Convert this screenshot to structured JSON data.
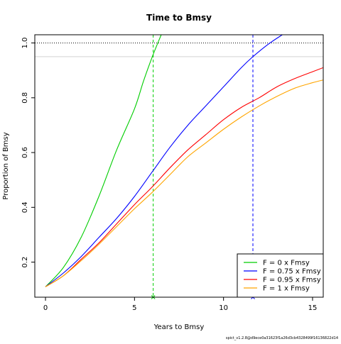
{
  "chart_data": {
    "type": "line",
    "title": "Time to Bmsy",
    "xlabel": "Years to Bmsy",
    "ylabel": "Proportion of Bmsy",
    "xlim": [
      -0.6,
      15.6
    ],
    "ylim": [
      0.072,
      1.03
    ],
    "x_ticks": [
      "0",
      "5",
      "10",
      "15"
    ],
    "y_ticks": [
      "0.2",
      "0.4",
      "0.6",
      "0.8",
      "1.0"
    ],
    "grid": false,
    "legend_position": "bottom-right",
    "reference_lines": [
      {
        "axis": "y",
        "value": 1.0,
        "style": "dotted",
        "color": "#000000"
      },
      {
        "axis": "y",
        "value": 0.95,
        "style": "solid",
        "color": "#d3d3d3"
      },
      {
        "axis": "x",
        "value": 6.05,
        "style": "dashed",
        "color": "#00cd00"
      },
      {
        "axis": "x",
        "value": 11.65,
        "style": "dashed",
        "color": "#0000ff"
      }
    ],
    "markers": [
      {
        "x": 6.05,
        "color": "#00cd00",
        "symbol": "x"
      },
      {
        "x": 11.65,
        "color": "#0000ff",
        "symbol": "x"
      }
    ],
    "series": [
      {
        "name": "F = 0 x Fmsy",
        "color": "#00cd00",
        "x": [
          0,
          1,
          2,
          3,
          4,
          5,
          5.5,
          6,
          6.5
        ],
        "y": [
          0.11,
          0.18,
          0.29,
          0.44,
          0.61,
          0.76,
          0.86,
          0.95,
          1.03
        ]
      },
      {
        "name": "F = 0.75 x Fmsy",
        "color": "#0000ff",
        "x": [
          0,
          1,
          2,
          3,
          4,
          5,
          6,
          7,
          8,
          9,
          10,
          11,
          11.65,
          12.5,
          13.3
        ],
        "y": [
          0.11,
          0.16,
          0.22,
          0.29,
          0.36,
          0.44,
          0.53,
          0.62,
          0.7,
          0.77,
          0.84,
          0.91,
          0.95,
          0.995,
          1.03
        ]
      },
      {
        "name": "F = 0.95 x Fmsy",
        "color": "#ff0000",
        "x": [
          0,
          1,
          2,
          3,
          4,
          5,
          6,
          7,
          8,
          9,
          10,
          11,
          12,
          13,
          14,
          15,
          15.6
        ],
        "y": [
          0.11,
          0.15,
          0.21,
          0.27,
          0.34,
          0.41,
          0.475,
          0.545,
          0.61,
          0.665,
          0.72,
          0.765,
          0.8,
          0.84,
          0.87,
          0.895,
          0.91
        ]
      },
      {
        "name": "F = 1 x Fmsy",
        "color": "#ffa500",
        "x": [
          0,
          1,
          2,
          3,
          4,
          5,
          6,
          7,
          8,
          9,
          10,
          11,
          12,
          13,
          14,
          15,
          15.6
        ],
        "y": [
          0.11,
          0.15,
          0.205,
          0.265,
          0.33,
          0.395,
          0.455,
          0.52,
          0.585,
          0.635,
          0.685,
          0.73,
          0.77,
          0.805,
          0.835,
          0.855,
          0.865
        ]
      }
    ]
  },
  "footer_text": "spict_v1.2.8@d9ece0a31623f1a26d3cb4328499f16136822d14"
}
